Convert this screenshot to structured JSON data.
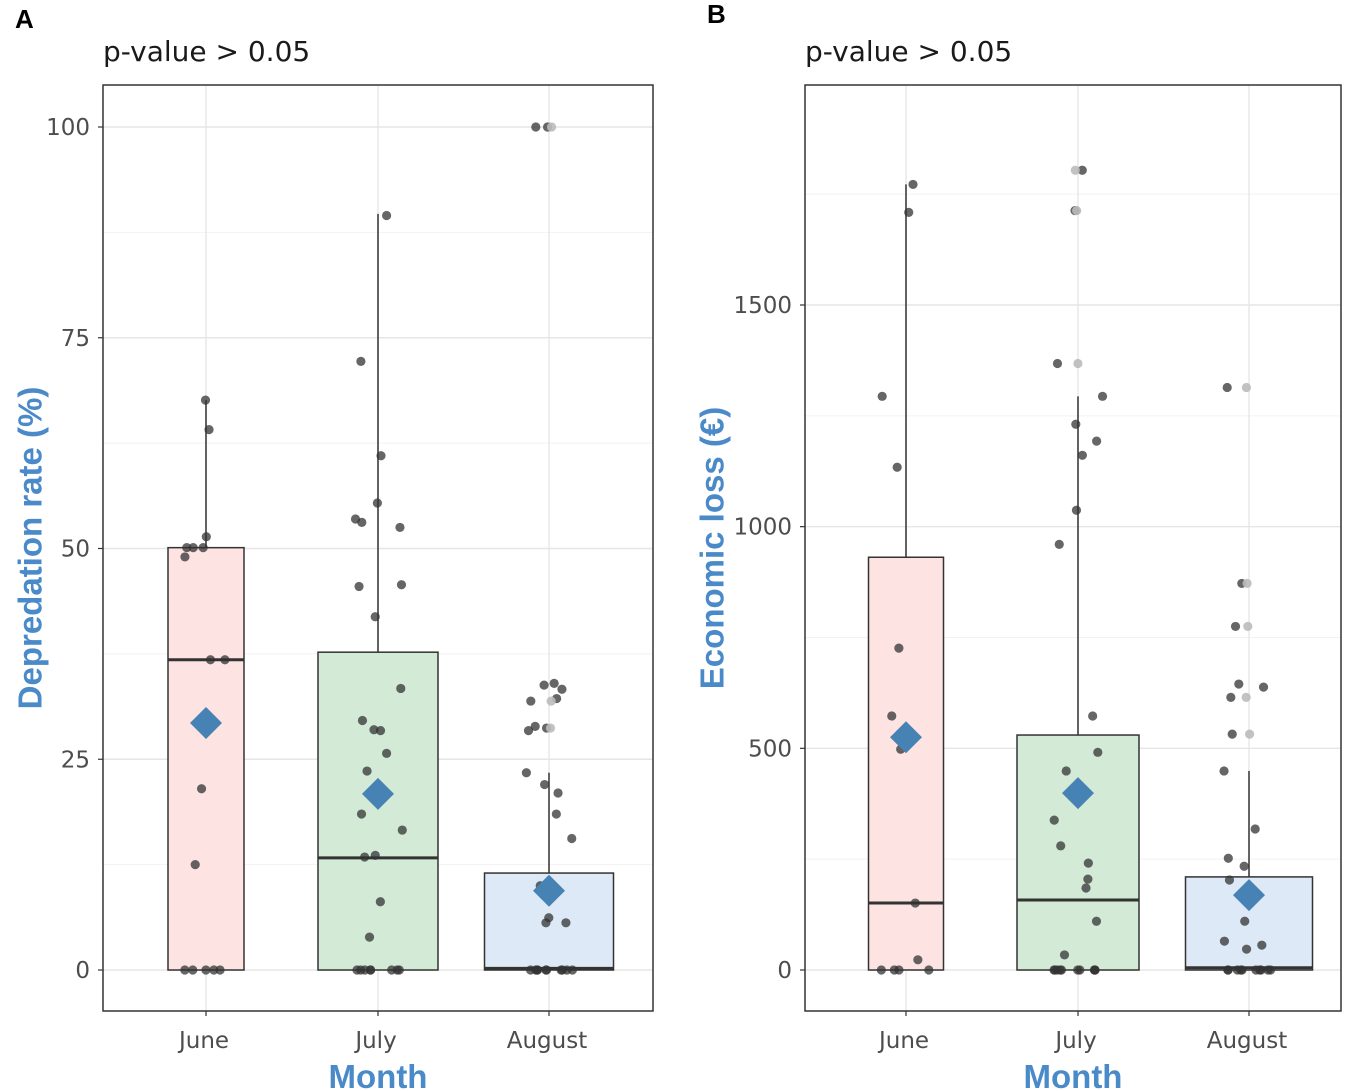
{
  "colors": {
    "axis_title": "#4a8ac9",
    "mean_marker": "#4682b4",
    "fills": [
      "#fde3e2",
      "#d2ead6",
      "#dde9f6"
    ],
    "point": "#333333",
    "point_light": "#bbbbbb"
  },
  "chart_data": [
    {
      "type": "box",
      "panel_label": "A",
      "title": "p-value > 0.05",
      "xlabel": "Month",
      "ylabel": "Depredation rate (%)",
      "categories": [
        "June",
        "July",
        "August"
      ],
      "ylim": [
        -5,
        105
      ],
      "yticks": [
        0,
        25,
        50,
        75,
        100
      ],
      "ytick_labels": [
        "0",
        "25",
        "50",
        "75",
        "100"
      ],
      "grid": true,
      "boxes": [
        {
          "q1": 0,
          "median": 36.8,
          "q3": 50.1,
          "whisker_low": 0,
          "whisker_high": 67.6,
          "mean": 29.3
        },
        {
          "q1": 0,
          "median": 13.3,
          "q3": 37.7,
          "whisker_low": 0,
          "whisker_high": 89.7,
          "mean": 20.9
        },
        {
          "q1": 0,
          "median": 0.2,
          "q3": 11.5,
          "whisker_low": 0,
          "whisker_high": 23.4,
          "mean": 9.4
        }
      ],
      "points": [
        [
          67.6,
          64.1,
          50.1,
          50.1,
          50.1,
          51.4,
          49.0,
          36.8,
          36.8,
          21.5,
          12.5,
          0,
          0,
          0,
          0,
          0
        ],
        [
          89.5,
          72.2,
          61.0,
          55.4,
          53.1,
          53.5,
          52.5,
          45.7,
          45.5,
          41.9,
          33.4,
          29.6,
          28.5,
          28.4,
          25.7,
          23.6,
          18.5,
          16.6,
          13.6,
          13.4,
          8.1,
          3.9,
          0,
          0,
          0,
          0,
          0,
          0,
          0,
          0
        ],
        [
          100,
          100,
          34.0,
          33.8,
          33.3,
          32.2,
          31.9,
          28.9,
          28.7,
          28.4,
          23.4,
          22.0,
          21.0,
          18.5,
          15.6,
          10.0,
          10.1,
          6.2,
          5.6,
          5.6,
          0,
          0,
          0,
          0,
          0,
          0,
          0,
          0,
          0,
          0
        ]
      ],
      "light_points": [
        [],
        [],
        [
          100,
          31.9,
          28.7
        ]
      ]
    },
    {
      "type": "box",
      "panel_label": "B",
      "title": "p-value > 0.05",
      "xlabel": "Month",
      "ylabel": "Economic loss (€)",
      "categories": [
        "June",
        "July",
        "August"
      ],
      "ylim": [
        -90,
        1990
      ],
      "yticks": [
        0,
        500,
        1000,
        1500
      ],
      "ytick_labels": [
        "0",
        "500",
        "1000",
        "1500"
      ],
      "grid": true,
      "boxes": [
        {
          "q1": 0,
          "median": 151,
          "q3": 931,
          "whisker_low": 0,
          "whisker_high": 1772,
          "mean": 525
        },
        {
          "q1": 0,
          "median": 158,
          "q3": 530,
          "whisker_low": 0,
          "whisker_high": 1294,
          "mean": 399
        },
        {
          "q1": 0,
          "median": 5,
          "q3": 210,
          "whisker_low": 0,
          "whisker_high": 449,
          "mean": 169
        }
      ],
      "points": [
        [
          1772,
          1709,
          1294,
          1134,
          726,
          573,
          498,
          151,
          23,
          0,
          0,
          0,
          0
        ],
        [
          1804,
          1713,
          1368,
          1294,
          1231,
          1193,
          1161,
          1037,
          960,
          573,
          491,
          449,
          338,
          280,
          241,
          205,
          185,
          110,
          34,
          0,
          0,
          0,
          0,
          0,
          0,
          0,
          0,
          0,
          0
        ],
        [
          1314,
          872,
          775,
          645,
          638,
          615,
          532,
          449,
          318,
          252,
          234,
          203,
          169,
          110,
          65,
          56,
          47,
          0,
          0,
          0,
          0,
          0,
          0,
          0,
          0,
          0,
          0
        ]
      ],
      "light_points": [
        [],
        [
          1804,
          1713,
          1368
        ],
        [
          1314,
          872,
          775,
          615,
          532
        ]
      ]
    }
  ]
}
